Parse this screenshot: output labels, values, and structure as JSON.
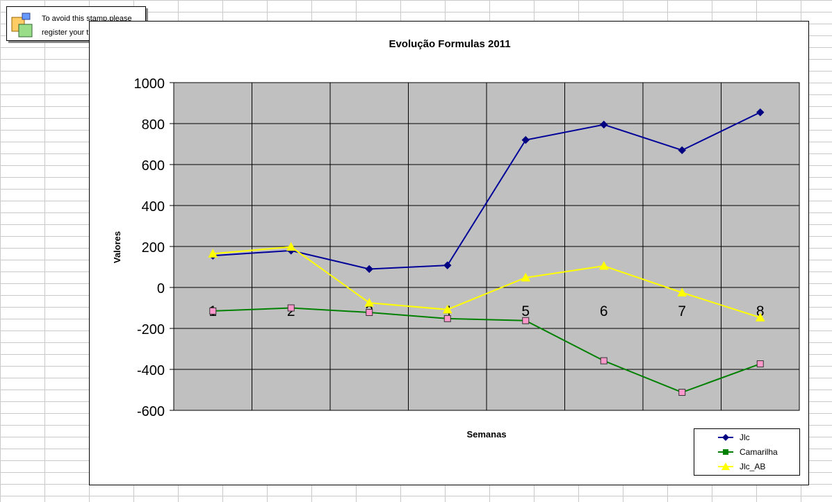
{
  "stamp": {
    "line1": "To avoid this stamp,please",
    "line2": "register your trial copy"
  },
  "chart_data": {
    "type": "line",
    "title": "Evolução Formulas 2011",
    "xlabel": "Semanas",
    "ylabel": "Valores",
    "categories": [
      "1",
      "2",
      "3",
      "4",
      "5",
      "6",
      "7",
      "8"
    ],
    "ylim": [
      -600,
      1000
    ],
    "yticks": [
      "1000",
      "800",
      "600",
      "400",
      "200",
      "0",
      "-200",
      "-400",
      "-600"
    ],
    "ytick_values": [
      1000,
      800,
      600,
      400,
      200,
      0,
      -200,
      -400,
      -600
    ],
    "grid": true,
    "plot_background": "#c0c0c0",
    "legend_position": "bottom-right",
    "series": [
      {
        "name": "Jlc",
        "marker": "diamond",
        "color": "#000099",
        "marker_color": "#000080",
        "values": [
          155,
          180,
          90,
          108,
          720,
          795,
          670,
          855
        ]
      },
      {
        "name": "Camarilha",
        "marker": "square",
        "color": "#008000",
        "marker_color": "#ff99cc",
        "values": [
          -115,
          -100,
          -122,
          -152,
          -162,
          -358,
          -512,
          -373
        ]
      },
      {
        "name": "Jlc_AB",
        "marker": "triangle",
        "color": "#ffff00",
        "marker_color": "#ffff00",
        "values": [
          165,
          198,
          -75,
          -108,
          48,
          105,
          -25,
          -147
        ]
      }
    ]
  }
}
